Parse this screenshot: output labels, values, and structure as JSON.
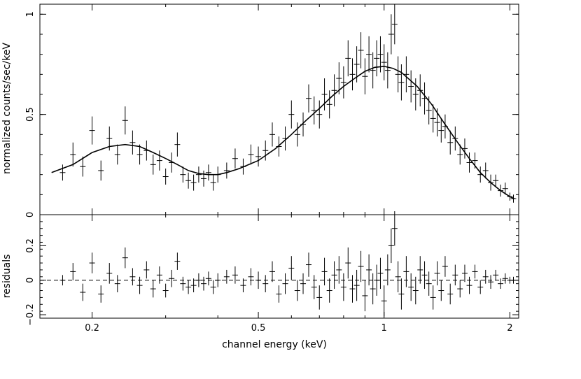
{
  "chart_data": [
    {
      "panel": "spectrum",
      "type": "line",
      "xlabel": "channel energy (keV)",
      "ylabel": "normalized counts/sec/keV",
      "x_scale": "log",
      "xlim": [
        0.15,
        2.1
      ],
      "ylim": [
        0,
        1.05
      ],
      "x_ticks": [
        0.2,
        0.5,
        1,
        2
      ],
      "y_ticks": [
        0,
        0.5,
        1
      ],
      "y_tick_labels": [
        "0",
        "0.5",
        "1"
      ],
      "model": {
        "x": [
          0.16,
          0.18,
          0.2,
          0.22,
          0.24,
          0.26,
          0.28,
          0.3,
          0.32,
          0.34,
          0.36,
          0.38,
          0.4,
          0.42,
          0.45,
          0.5,
          0.55,
          0.6,
          0.65,
          0.7,
          0.75,
          0.8,
          0.85,
          0.9,
          0.95,
          1.0,
          1.05,
          1.1,
          1.2,
          1.3,
          1.4,
          1.5,
          1.6,
          1.7,
          1.8,
          1.9,
          2.0,
          2.05
        ],
        "y": [
          0.21,
          0.25,
          0.31,
          0.34,
          0.35,
          0.34,
          0.31,
          0.28,
          0.25,
          0.22,
          0.205,
          0.2,
          0.2,
          0.21,
          0.23,
          0.27,
          0.33,
          0.4,
          0.47,
          0.53,
          0.59,
          0.64,
          0.68,
          0.715,
          0.735,
          0.74,
          0.73,
          0.71,
          0.64,
          0.55,
          0.45,
          0.36,
          0.28,
          0.21,
          0.16,
          0.12,
          0.09,
          0.08
        ]
      },
      "points": {
        "x": [
          0.17,
          0.18,
          0.19,
          0.2,
          0.21,
          0.22,
          0.23,
          0.24,
          0.25,
          0.26,
          0.27,
          0.28,
          0.29,
          0.3,
          0.31,
          0.32,
          0.33,
          0.34,
          0.35,
          0.36,
          0.37,
          0.38,
          0.39,
          0.4,
          0.42,
          0.44,
          0.46,
          0.48,
          0.5,
          0.52,
          0.54,
          0.56,
          0.58,
          0.6,
          0.62,
          0.64,
          0.66,
          0.68,
          0.7,
          0.72,
          0.74,
          0.76,
          0.78,
          0.8,
          0.82,
          0.84,
          0.86,
          0.88,
          0.9,
          0.92,
          0.94,
          0.96,
          0.98,
          1.0,
          1.02,
          1.04,
          1.06,
          1.08,
          1.1,
          1.13,
          1.16,
          1.19,
          1.22,
          1.25,
          1.28,
          1.31,
          1.34,
          1.37,
          1.4,
          1.44,
          1.48,
          1.52,
          1.56,
          1.6,
          1.65,
          1.7,
          1.75,
          1.8,
          1.85,
          1.9,
          1.95,
          2.0,
          2.04
        ],
        "y": [
          0.21,
          0.3,
          0.24,
          0.42,
          0.22,
          0.38,
          0.3,
          0.47,
          0.36,
          0.3,
          0.32,
          0.25,
          0.27,
          0.19,
          0.26,
          0.35,
          0.2,
          0.17,
          0.16,
          0.2,
          0.18,
          0.21,
          0.16,
          0.2,
          0.22,
          0.28,
          0.24,
          0.3,
          0.29,
          0.32,
          0.4,
          0.34,
          0.38,
          0.5,
          0.4,
          0.45,
          0.58,
          0.52,
          0.5,
          0.6,
          0.55,
          0.62,
          0.68,
          0.66,
          0.78,
          0.7,
          0.75,
          0.82,
          0.69,
          0.8,
          0.72,
          0.78,
          0.8,
          0.76,
          0.72,
          0.9,
          0.95,
          0.7,
          0.66,
          0.7,
          0.64,
          0.6,
          0.62,
          0.58,
          0.52,
          0.48,
          0.46,
          0.42,
          0.44,
          0.36,
          0.38,
          0.3,
          0.33,
          0.26,
          0.27,
          0.2,
          0.22,
          0.16,
          0.17,
          0.12,
          0.13,
          0.09,
          0.08
        ],
        "yerr": [
          0.04,
          0.06,
          0.05,
          0.07,
          0.05,
          0.06,
          0.05,
          0.07,
          0.06,
          0.05,
          0.05,
          0.05,
          0.05,
          0.04,
          0.05,
          0.06,
          0.04,
          0.04,
          0.04,
          0.04,
          0.04,
          0.04,
          0.04,
          0.04,
          0.04,
          0.05,
          0.04,
          0.05,
          0.05,
          0.05,
          0.06,
          0.05,
          0.06,
          0.07,
          0.06,
          0.06,
          0.07,
          0.07,
          0.07,
          0.08,
          0.07,
          0.08,
          0.08,
          0.08,
          0.09,
          0.08,
          0.09,
          0.09,
          0.09,
          0.09,
          0.09,
          0.09,
          0.09,
          0.09,
          0.09,
          0.1,
          0.1,
          0.09,
          0.09,
          0.09,
          0.08,
          0.08,
          0.08,
          0.08,
          0.07,
          0.07,
          0.07,
          0.06,
          0.06,
          0.06,
          0.06,
          0.05,
          0.05,
          0.05,
          0.04,
          0.04,
          0.04,
          0.04,
          0.03,
          0.03,
          0.03,
          0.02,
          0.02
        ]
      }
    },
    {
      "panel": "residuals",
      "type": "scatter",
      "xlabel": "channel energy (keV)",
      "ylabel": "residuals",
      "x_scale": "log",
      "xlim": [
        0.15,
        2.1
      ],
      "ylim": [
        -0.22,
        0.38
      ],
      "x_ticks": [
        0.2,
        0.5,
        1,
        2
      ],
      "x_tick_labels": [
        "0.2",
        "0.5",
        "1",
        "2"
      ],
      "y_ticks": [
        -0.2,
        0,
        0.2
      ],
      "y_tick_labels": [
        "−0.2",
        "0",
        "0.2"
      ],
      "zero_line": 0,
      "points": {
        "x": [
          0.17,
          0.18,
          0.19,
          0.2,
          0.21,
          0.22,
          0.23,
          0.24,
          0.25,
          0.26,
          0.27,
          0.28,
          0.29,
          0.3,
          0.31,
          0.32,
          0.33,
          0.34,
          0.35,
          0.36,
          0.37,
          0.38,
          0.39,
          0.4,
          0.42,
          0.44,
          0.46,
          0.48,
          0.5,
          0.52,
          0.54,
          0.56,
          0.58,
          0.6,
          0.62,
          0.64,
          0.66,
          0.68,
          0.7,
          0.72,
          0.74,
          0.76,
          0.78,
          0.8,
          0.82,
          0.84,
          0.86,
          0.88,
          0.9,
          0.92,
          0.94,
          0.96,
          0.98,
          1.0,
          1.02,
          1.04,
          1.06,
          1.08,
          1.1,
          1.13,
          1.16,
          1.19,
          1.22,
          1.25,
          1.28,
          1.31,
          1.34,
          1.37,
          1.4,
          1.44,
          1.48,
          1.52,
          1.56,
          1.6,
          1.65,
          1.7,
          1.75,
          1.8,
          1.85,
          1.9,
          1.95,
          2.0,
          2.04
        ],
        "y": [
          0.0,
          0.05,
          -0.07,
          0.1,
          -0.08,
          0.04,
          -0.02,
          0.13,
          0.02,
          -0.03,
          0.06,
          -0.05,
          0.03,
          -0.06,
          0.01,
          0.11,
          -0.02,
          -0.04,
          -0.03,
          0.0,
          -0.02,
          0.01,
          -0.04,
          0.0,
          0.02,
          0.03,
          -0.03,
          0.02,
          0.0,
          -0.02,
          0.05,
          -0.08,
          -0.02,
          0.07,
          -0.06,
          -0.02,
          0.09,
          -0.04,
          -0.1,
          0.05,
          -0.06,
          0.03,
          0.06,
          -0.04,
          0.1,
          -0.05,
          -0.03,
          0.08,
          -0.09,
          0.06,
          -0.05,
          0.0,
          0.04,
          -0.12,
          0.06,
          0.2,
          0.3,
          0.02,
          -0.08,
          0.05,
          -0.04,
          -0.06,
          0.06,
          0.03,
          -0.02,
          -0.1,
          0.04,
          -0.06,
          0.08,
          -0.08,
          0.03,
          -0.05,
          0.04,
          -0.03,
          0.05,
          -0.04,
          0.02,
          -0.01,
          0.03,
          -0.02,
          0.01,
          0.0,
          0.0
        ],
        "yerr": [
          0.03,
          0.05,
          0.05,
          0.06,
          0.05,
          0.06,
          0.05,
          0.06,
          0.05,
          0.05,
          0.05,
          0.05,
          0.05,
          0.04,
          0.05,
          0.05,
          0.04,
          0.04,
          0.04,
          0.04,
          0.04,
          0.04,
          0.04,
          0.04,
          0.04,
          0.05,
          0.04,
          0.05,
          0.05,
          0.05,
          0.06,
          0.05,
          0.06,
          0.07,
          0.06,
          0.06,
          0.07,
          0.07,
          0.07,
          0.08,
          0.07,
          0.08,
          0.08,
          0.08,
          0.09,
          0.08,
          0.09,
          0.09,
          0.09,
          0.09,
          0.09,
          0.09,
          0.09,
          0.09,
          0.09,
          0.1,
          0.1,
          0.09,
          0.09,
          0.09,
          0.08,
          0.08,
          0.08,
          0.08,
          0.07,
          0.07,
          0.07,
          0.06,
          0.06,
          0.06,
          0.06,
          0.05,
          0.05,
          0.05,
          0.04,
          0.04,
          0.04,
          0.04,
          0.03,
          0.03,
          0.03,
          0.02,
          0.02
        ]
      }
    }
  ]
}
